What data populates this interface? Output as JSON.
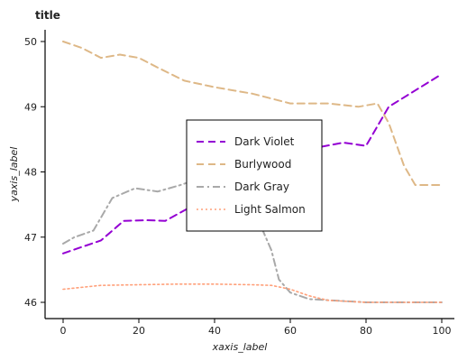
{
  "chart_data": {
    "type": "line",
    "title": "title",
    "xlabel": "xaxis_label",
    "ylabel": "yaxis_label",
    "xlim": [
      0,
      100
    ],
    "ylim": [
      46,
      50
    ],
    "xticks": [
      "0",
      "20",
      "40",
      "60",
      "80",
      "100"
    ],
    "yticks": [
      "46",
      "47",
      "48",
      "49",
      "50"
    ],
    "grid": false,
    "legend_position": "center",
    "series": [
      {
        "name": "Dark Violet",
        "color": "#9400d3",
        "dash": "dashed",
        "x": [
          0,
          10,
          16,
          22,
          27,
          38,
          44,
          48,
          53,
          60,
          65,
          74,
          80,
          86,
          93,
          100
        ],
        "y": [
          46.75,
          46.95,
          47.25,
          47.26,
          47.25,
          47.6,
          47.65,
          47.62,
          47.75,
          48.25,
          48.35,
          48.45,
          48.4,
          49.0,
          49.25,
          49.5
        ]
      },
      {
        "name": "Burlywood",
        "color": "#deb887",
        "dash": "dashed",
        "x": [
          0,
          5,
          10,
          15,
          20,
          25,
          32,
          40,
          50,
          60,
          70,
          78,
          83,
          86,
          90,
          93,
          100
        ],
        "y": [
          50.0,
          49.9,
          49.75,
          49.8,
          49.75,
          49.6,
          49.4,
          49.3,
          49.2,
          49.05,
          49.05,
          49.0,
          49.05,
          48.75,
          48.1,
          47.8,
          47.8
        ]
      },
      {
        "name": "Dark Gray",
        "color": "#a9a9a9",
        "dash": "dashdot",
        "x": [
          0,
          3,
          8,
          13,
          19,
          25,
          31,
          36,
          44,
          48,
          52,
          55,
          57,
          60,
          65,
          80,
          100
        ],
        "y": [
          46.9,
          47.0,
          47.1,
          47.6,
          47.75,
          47.7,
          47.8,
          47.9,
          47.6,
          47.45,
          47.2,
          46.8,
          46.35,
          46.15,
          46.05,
          46.0,
          46.0
        ]
      },
      {
        "name": "Light Salmon",
        "color": "#ffa07a",
        "dash": "dotted",
        "x": [
          0,
          10,
          20,
          30,
          40,
          50,
          55,
          60,
          65,
          70,
          80,
          90,
          100
        ],
        "y": [
          46.2,
          46.26,
          46.27,
          46.28,
          46.28,
          46.27,
          46.26,
          46.2,
          46.1,
          46.03,
          46.0,
          46.0,
          46.0
        ]
      }
    ]
  }
}
